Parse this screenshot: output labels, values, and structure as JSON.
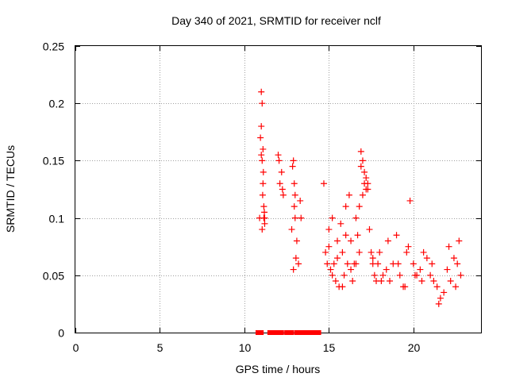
{
  "chart_data": {
    "type": "scatter",
    "title": "Day 340 of 2021, SRMTID for receiver nclf",
    "xlabel": "GPS time / hours",
    "ylabel": "SRMTID / TECUs",
    "xlim": [
      0,
      24
    ],
    "ylim": [
      0,
      0.25
    ],
    "xticks": [
      0,
      5,
      10,
      15,
      20
    ],
    "xtick_labels": [
      "0",
      "5",
      "10",
      "15",
      "20"
    ],
    "yticks": [
      0,
      0.05,
      0.1,
      0.15,
      0.2,
      0.25
    ],
    "ytick_labels": [
      "0",
      "0.05",
      "0.1",
      "0.15",
      "0.2",
      "0.25"
    ],
    "grid": true,
    "legend": "none",
    "series": [
      {
        "marker": "plus",
        "color": "#ff0000",
        "x": [
          10.9,
          10.95,
          11.0,
          11.05,
          11.1,
          11.15,
          11.2,
          11.0,
          11.05,
          11.1,
          11.0,
          11.08,
          11.12,
          11.18,
          11.05,
          11.15,
          11.2,
          12.0,
          12.1,
          12.2,
          12.3,
          12.05,
          12.25,
          12.8,
          12.9,
          13.0,
          13.1,
          13.2,
          12.85,
          12.95,
          13.05,
          12.9,
          13.0,
          12.95,
          13.3,
          13.35,
          14.7,
          14.8,
          14.9,
          15.0,
          15.1,
          15.2,
          15.3,
          15.4,
          15.5,
          15.6,
          15.7,
          15.8,
          15.9,
          16.0,
          16.1,
          16.2,
          16.3,
          16.4,
          16.5,
          16.6,
          16.7,
          16.8,
          16.9,
          17.0,
          17.1,
          17.2,
          17.3,
          17.4,
          17.5,
          17.6,
          17.7,
          17.8,
          17.9,
          18.0,
          18.2,
          18.4,
          18.6,
          18.8,
          19.0,
          19.2,
          19.4,
          19.6,
          19.8,
          20.0,
          20.2,
          20.4,
          20.6,
          20.8,
          21.0,
          21.2,
          21.4,
          21.6,
          21.8,
          22.0,
          22.2,
          22.4,
          22.6,
          22.8,
          16.9,
          17.0,
          17.1,
          17.2,
          16.8,
          17.3,
          15.0,
          15.2,
          15.5,
          15.8,
          16.0,
          16.3,
          16.6,
          17.6,
          18.1,
          18.5,
          19.1,
          19.5,
          19.7,
          20.1,
          20.5,
          21.1,
          21.5,
          22.1,
          22.5,
          22.7
        ],
        "y": [
          0.1,
          0.17,
          0.21,
          0.15,
          0.13,
          0.1,
          0.095,
          0.155,
          0.2,
          0.16,
          0.18,
          0.12,
          0.14,
          0.105,
          0.09,
          0.11,
          0.1,
          0.155,
          0.13,
          0.14,
          0.12,
          0.15,
          0.125,
          0.09,
          0.15,
          0.12,
          0.08,
          0.06,
          0.145,
          0.11,
          0.065,
          0.055,
          0.1,
          0.13,
          0.115,
          0.1,
          0.13,
          0.07,
          0.06,
          0.09,
          0.055,
          0.1,
          0.06,
          0.045,
          0.08,
          0.04,
          0.095,
          0.07,
          0.05,
          0.11,
          0.06,
          0.12,
          0.08,
          0.045,
          0.06,
          0.1,
          0.085,
          0.07,
          0.145,
          0.12,
          0.13,
          0.135,
          0.125,
          0.09,
          0.07,
          0.06,
          0.05,
          0.045,
          0.06,
          0.07,
          0.05,
          0.055,
          0.045,
          0.06,
          0.085,
          0.05,
          0.04,
          0.07,
          0.115,
          0.06,
          0.05,
          0.055,
          0.07,
          0.065,
          0.05,
          0.045,
          0.04,
          0.03,
          0.035,
          0.055,
          0.045,
          0.065,
          0.06,
          0.05,
          0.158,
          0.15,
          0.14,
          0.125,
          0.11,
          0.13,
          0.075,
          0.05,
          0.065,
          0.04,
          0.085,
          0.055,
          0.06,
          0.065,
          0.045,
          0.08,
          0.06,
          0.04,
          0.075,
          0.05,
          0.045,
          0.06,
          0.025,
          0.075,
          0.04,
          0.08
        ]
      },
      {
        "marker": "square",
        "color": "#ff0000",
        "x": [
          10.8,
          11.0,
          11.5,
          11.6,
          11.7,
          11.8,
          11.9,
          12.0,
          12.1,
          12.2,
          12.5,
          12.6,
          12.7,
          12.8,
          13.1,
          13.2,
          13.3,
          13.5,
          13.6,
          13.7,
          13.8,
          13.9,
          14.0,
          14.1,
          14.2,
          14.3,
          14.4
        ],
        "y": [
          0,
          0,
          0,
          0,
          0,
          0,
          0,
          0,
          0,
          0,
          0,
          0,
          0,
          0,
          0,
          0,
          0,
          0,
          0,
          0,
          0,
          0,
          0,
          0,
          0,
          0,
          0
        ]
      }
    ]
  }
}
